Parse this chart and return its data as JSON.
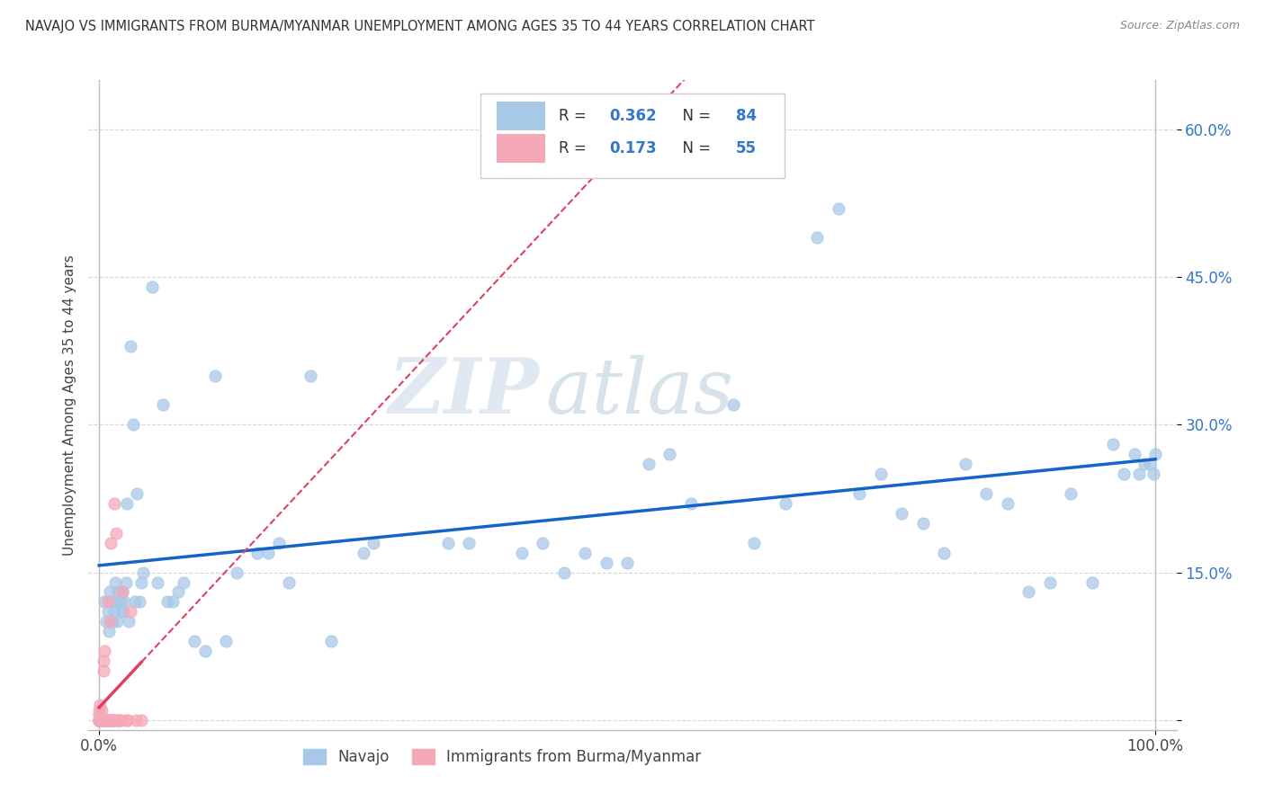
{
  "title": "NAVAJO VS IMMIGRANTS FROM BURMA/MYANMAR UNEMPLOYMENT AMONG AGES 35 TO 44 YEARS CORRELATION CHART",
  "source": "Source: ZipAtlas.com",
  "ylabel": "Unemployment Among Ages 35 to 44 years",
  "watermark_part1": "ZIP",
  "watermark_part2": "atlas",
  "xlim": [
    -0.01,
    1.02
  ],
  "ylim": [
    -0.01,
    0.65
  ],
  "yticks": [
    0.0,
    0.15,
    0.3,
    0.45,
    0.6
  ],
  "yticklabels": [
    "",
    "15.0%",
    "30.0%",
    "45.0%",
    "60.0%"
  ],
  "navajo_R": 0.362,
  "navajo_N": 84,
  "burma_R": 0.173,
  "burma_N": 55,
  "navajo_color": "#a8c8e8",
  "burma_color": "#f4a8b8",
  "navajo_line_color": "#1464c8",
  "burma_line_color": "#e04060",
  "burma_dash_color": "#e04060",
  "legend_label_navajo": "Navajo",
  "legend_label_burma": "Immigrants from Burma/Myanmar",
  "navajo_x": [
    0.005,
    0.007,
    0.008,
    0.009,
    0.01,
    0.012,
    0.013,
    0.014,
    0.015,
    0.016,
    0.017,
    0.018,
    0.02,
    0.021,
    0.022,
    0.023,
    0.024,
    0.025,
    0.026,
    0.028,
    0.03,
    0.032,
    0.034,
    0.036,
    0.038,
    0.04,
    0.042,
    0.05,
    0.055,
    0.06,
    0.065,
    0.07,
    0.075,
    0.08,
    0.09,
    0.1,
    0.11,
    0.12,
    0.13,
    0.15,
    0.16,
    0.17,
    0.18,
    0.2,
    0.22,
    0.25,
    0.26,
    0.33,
    0.35,
    0.38,
    0.4,
    0.42,
    0.44,
    0.46,
    0.48,
    0.5,
    0.52,
    0.54,
    0.56,
    0.6,
    0.62,
    0.65,
    0.68,
    0.7,
    0.72,
    0.74,
    0.76,
    0.78,
    0.8,
    0.82,
    0.84,
    0.86,
    0.88,
    0.9,
    0.92,
    0.94,
    0.96,
    0.97,
    0.98,
    0.985,
    0.99,
    0.995,
    0.998,
    1.0
  ],
  "navajo_y": [
    0.12,
    0.1,
    0.11,
    0.09,
    0.13,
    0.12,
    0.1,
    0.11,
    0.14,
    0.12,
    0.1,
    0.13,
    0.12,
    0.11,
    0.13,
    0.11,
    0.12,
    0.14,
    0.22,
    0.1,
    0.38,
    0.3,
    0.12,
    0.23,
    0.12,
    0.14,
    0.15,
    0.44,
    0.14,
    0.32,
    0.12,
    0.12,
    0.13,
    0.14,
    0.08,
    0.07,
    0.35,
    0.08,
    0.15,
    0.17,
    0.17,
    0.18,
    0.14,
    0.35,
    0.08,
    0.17,
    0.18,
    0.18,
    0.18,
    0.62,
    0.17,
    0.18,
    0.15,
    0.17,
    0.16,
    0.16,
    0.26,
    0.27,
    0.22,
    0.32,
    0.18,
    0.22,
    0.49,
    0.52,
    0.23,
    0.25,
    0.21,
    0.2,
    0.17,
    0.26,
    0.23,
    0.22,
    0.13,
    0.14,
    0.23,
    0.14,
    0.28,
    0.25,
    0.27,
    0.25,
    0.26,
    0.26,
    0.25,
    0.27
  ],
  "burma_x": [
    0.0,
    0.0,
    0.0,
    0.0,
    0.0,
    0.0,
    0.0,
    0.0,
    0.0,
    0.0,
    0.001,
    0.001,
    0.001,
    0.001,
    0.002,
    0.002,
    0.002,
    0.003,
    0.003,
    0.003,
    0.004,
    0.004,
    0.004,
    0.005,
    0.005,
    0.005,
    0.006,
    0.006,
    0.007,
    0.007,
    0.008,
    0.008,
    0.009,
    0.01,
    0.01,
    0.01,
    0.011,
    0.011,
    0.012,
    0.012,
    0.013,
    0.013,
    0.014,
    0.015,
    0.016,
    0.017,
    0.018,
    0.019,
    0.02,
    0.022,
    0.025,
    0.027,
    0.03,
    0.035,
    0.04
  ],
  "burma_y": [
    0.0,
    0.0,
    0.0,
    0.0,
    0.0,
    0.0,
    0.0,
    0.0,
    0.005,
    0.01,
    0.0,
    0.0,
    0.0,
    0.015,
    0.0,
    0.0,
    0.01,
    0.0,
    0.0,
    0.0,
    0.0,
    0.05,
    0.06,
    0.0,
    0.0,
    0.07,
    0.0,
    0.0,
    0.0,
    0.0,
    0.0,
    0.12,
    0.0,
    0.0,
    0.0,
    0.1,
    0.0,
    0.18,
    0.0,
    0.0,
    0.0,
    0.0,
    0.22,
    0.0,
    0.19,
    0.0,
    0.0,
    0.0,
    0.0,
    0.13,
    0.0,
    0.0,
    0.11,
    0.0,
    0.0
  ]
}
